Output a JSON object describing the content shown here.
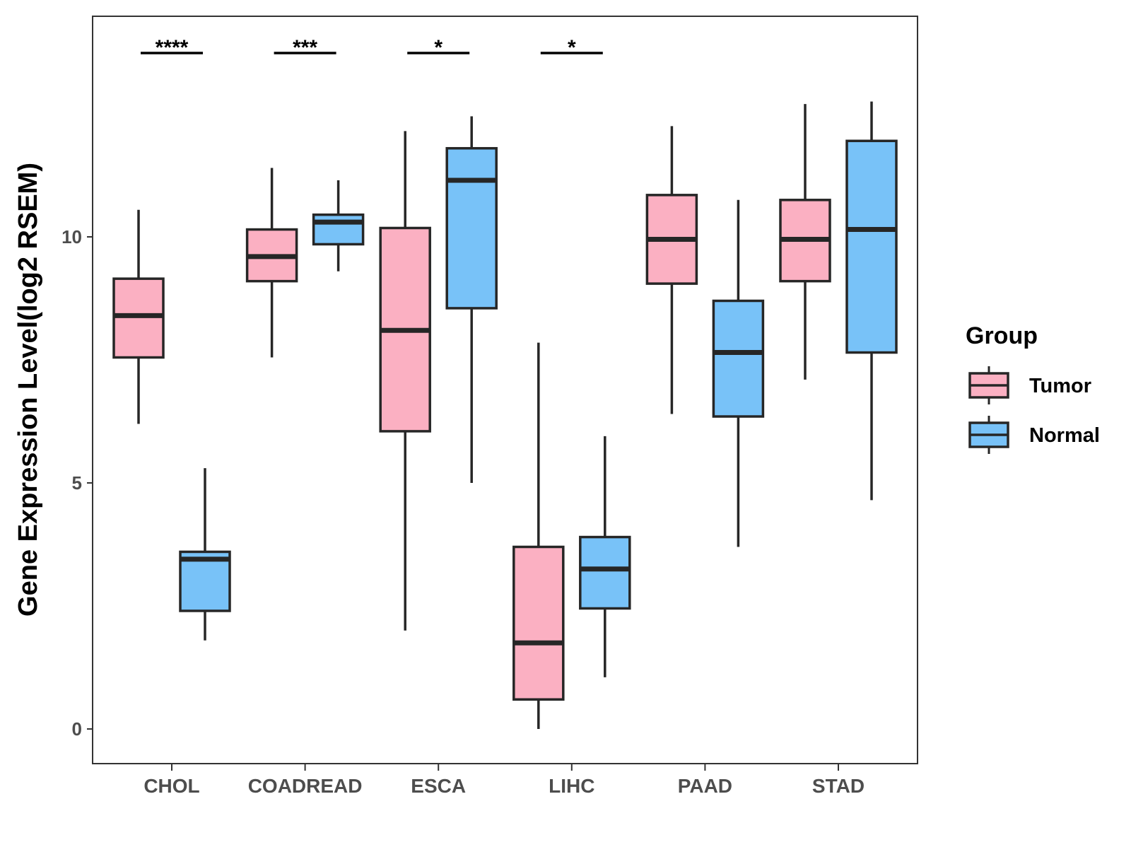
{
  "chart_data": {
    "type": "box",
    "title": "",
    "xlabel": "",
    "ylabel": "Gene Expression Level(log2 RSEM)",
    "ylim": [
      -0.65,
      14.5
    ],
    "yticks": [
      0,
      5,
      10
    ],
    "grid": false,
    "legend_placement": "right",
    "legend_title": "Group",
    "categories": [
      "CHOL",
      "COADREAD",
      "ESCA",
      "LIHC",
      "PAAD",
      "STAD"
    ],
    "series": [
      {
        "name": "Tumor",
        "color": "#FBB0C2",
        "boxes": [
          {
            "min": 6.2,
            "q1": 7.55,
            "median": 8.4,
            "q3": 9.15,
            "max": 10.55
          },
          {
            "min": 7.55,
            "q1": 9.1,
            "median": 9.6,
            "q3": 10.15,
            "max": 11.4
          },
          {
            "min": 2.0,
            "q1": 6.05,
            "median": 8.1,
            "q3": 10.18,
            "max": 12.15
          },
          {
            "min": 0.0,
            "q1": 0.6,
            "median": 1.75,
            "q3": 3.7,
            "max": 7.85
          },
          {
            "min": 6.4,
            "q1": 9.05,
            "median": 9.95,
            "q3": 10.85,
            "max": 12.25
          },
          {
            "min": 7.1,
            "q1": 9.1,
            "median": 9.95,
            "q3": 10.75,
            "max": 12.7
          }
        ]
      },
      {
        "name": "Normal",
        "color": "#78C2F8",
        "boxes": [
          {
            "min": 1.8,
            "q1": 2.4,
            "median": 3.45,
            "q3": 3.6,
            "max": 5.3
          },
          {
            "min": 9.3,
            "q1": 9.85,
            "median": 10.3,
            "q3": 10.45,
            "max": 11.15
          },
          {
            "min": 5.0,
            "q1": 8.55,
            "median": 11.15,
            "q3": 11.8,
            "max": 12.45
          },
          {
            "min": 1.05,
            "q1": 2.45,
            "median": 3.25,
            "q3": 3.9,
            "max": 5.95
          },
          {
            "min": 3.7,
            "q1": 6.35,
            "median": 7.65,
            "q3": 8.7,
            "max": 10.75
          },
          {
            "min": 4.65,
            "q1": 7.65,
            "median": 10.15,
            "q3": 11.95,
            "max": 12.75
          }
        ]
      }
    ],
    "annotations": [
      {
        "category": "CHOL",
        "label": "****"
      },
      {
        "category": "COADREAD",
        "label": "***"
      },
      {
        "category": "ESCA",
        "label": "*"
      },
      {
        "category": "LIHC",
        "label": "*"
      }
    ]
  }
}
